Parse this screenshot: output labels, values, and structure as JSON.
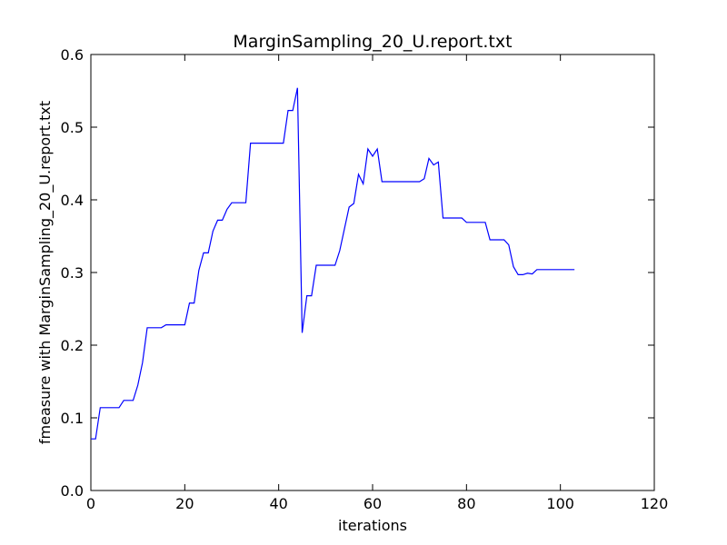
{
  "chart_data": {
    "type": "line",
    "title": "MarginSampling_20_U.report.txt",
    "xlabel": "iterations",
    "ylabel": "fmeasure with MarginSampling_20_U.report.txt",
    "xlim": [
      0,
      120
    ],
    "ylim": [
      0.0,
      0.6
    ],
    "xticks": [
      "0",
      "20",
      "40",
      "60",
      "80",
      "100",
      "120"
    ],
    "yticks": [
      "0.0",
      "0.1",
      "0.2",
      "0.3",
      "0.4",
      "0.5",
      "0.6"
    ],
    "grid": false,
    "series": [
      {
        "color": "#0000ff",
        "x": [
          0,
          1,
          2,
          3,
          4,
          5,
          6,
          7,
          8,
          9,
          10,
          11,
          12,
          13,
          14,
          15,
          16,
          17,
          18,
          19,
          20,
          21,
          22,
          23,
          24,
          25,
          26,
          27,
          28,
          29,
          30,
          31,
          32,
          33,
          34,
          35,
          36,
          37,
          38,
          39,
          40,
          41,
          42,
          43,
          44,
          45,
          46,
          47,
          48,
          49,
          50,
          51,
          52,
          53,
          54,
          55,
          56,
          57,
          58,
          59,
          60,
          61,
          62,
          63,
          64,
          65,
          66,
          67,
          68,
          69,
          70,
          71,
          72,
          73,
          74,
          75,
          76,
          77,
          78,
          79,
          80,
          81,
          82,
          83,
          84,
          85,
          86,
          87,
          88,
          89,
          90,
          91,
          92,
          93,
          94,
          95,
          96,
          97,
          98,
          99,
          100,
          101,
          102,
          103
        ],
        "y": [
          0.071,
          0.071,
          0.114,
          0.114,
          0.114,
          0.114,
          0.114,
          0.124,
          0.124,
          0.124,
          0.145,
          0.176,
          0.224,
          0.224,
          0.224,
          0.224,
          0.228,
          0.228,
          0.228,
          0.228,
          0.228,
          0.258,
          0.258,
          0.303,
          0.327,
          0.327,
          0.357,
          0.372,
          0.372,
          0.387,
          0.396,
          0.396,
          0.396,
          0.396,
          0.478,
          0.478,
          0.478,
          0.478,
          0.478,
          0.478,
          0.478,
          0.478,
          0.523,
          0.523,
          0.554,
          0.217,
          0.268,
          0.268,
          0.31,
          0.31,
          0.31,
          0.31,
          0.31,
          0.33,
          0.36,
          0.39,
          0.395,
          0.435,
          0.422,
          0.47,
          0.46,
          0.47,
          0.425,
          0.425,
          0.425,
          0.425,
          0.425,
          0.425,
          0.425,
          0.425,
          0.425,
          0.429,
          0.457,
          0.448,
          0.452,
          0.375,
          0.375,
          0.375,
          0.375,
          0.375,
          0.369,
          0.369,
          0.369,
          0.369,
          0.369,
          0.345,
          0.345,
          0.345,
          0.345,
          0.338,
          0.308,
          0.297,
          0.297,
          0.299,
          0.298,
          0.304,
          0.304,
          0.304,
          0.304,
          0.304,
          0.304,
          0.304,
          0.304,
          0.304
        ]
      }
    ]
  }
}
